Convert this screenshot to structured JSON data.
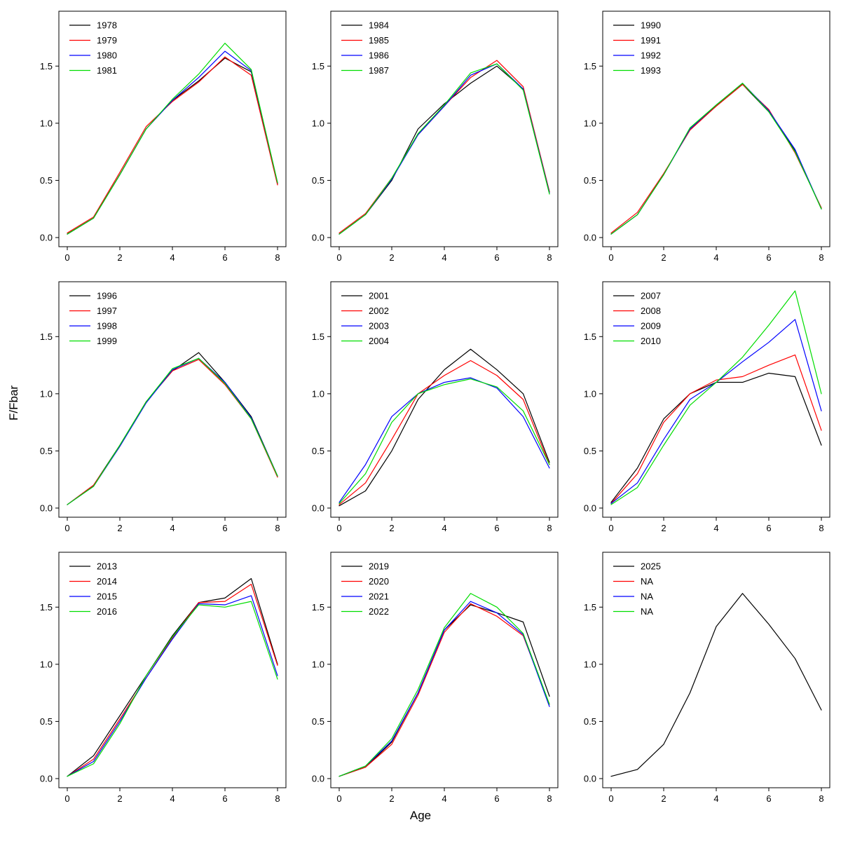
{
  "labels": {
    "xlabel": "Age",
    "ylabel": "F/Fbar"
  },
  "axes": {
    "x": [
      0,
      1,
      2,
      3,
      4,
      5,
      6,
      7,
      8
    ],
    "xticks": [
      0,
      2,
      4,
      6,
      8
    ],
    "ytick_values": [
      0,
      0.5,
      1,
      1.5
    ],
    "yticks": [
      "0.0",
      "0.5",
      "1.0",
      "1.5"
    ],
    "xlim": [
      -0.32,
      8.32
    ],
    "ylim": [
      -0.08,
      1.98
    ],
    "grid": false,
    "legend_position": "topleft"
  },
  "colors": {
    "line1": "#000000",
    "line2": "#FF0000",
    "line3": "#0000FF",
    "line4": "#00DD00"
  },
  "chart_data": [
    {
      "id": "1978-1981",
      "type": "line",
      "series": [
        {
          "name": "1978",
          "color": "#000000",
          "values": [
            0.03,
            0.17,
            0.55,
            0.95,
            1.2,
            1.37,
            1.57,
            1.45,
            0.47
          ]
        },
        {
          "name": "1979",
          "color": "#FF0000",
          "values": [
            0.04,
            0.18,
            0.57,
            0.97,
            1.19,
            1.36,
            1.58,
            1.42,
            0.46
          ]
        },
        {
          "name": "1980",
          "color": "#0000FF",
          "values": [
            0.03,
            0.17,
            0.55,
            0.95,
            1.2,
            1.4,
            1.63,
            1.46,
            0.48
          ]
        },
        {
          "name": "1981",
          "color": "#00DD00",
          "values": [
            0.03,
            0.17,
            0.55,
            0.95,
            1.21,
            1.43,
            1.7,
            1.47,
            0.48
          ]
        }
      ]
    },
    {
      "id": "1984-1987",
      "type": "line",
      "series": [
        {
          "name": "1984",
          "color": "#000000",
          "values": [
            0.03,
            0.2,
            0.5,
            0.95,
            1.17,
            1.35,
            1.5,
            1.3,
            0.4
          ]
        },
        {
          "name": "1985",
          "color": "#FF0000",
          "values": [
            0.04,
            0.21,
            0.52,
            0.9,
            1.15,
            1.4,
            1.55,
            1.32,
            0.4
          ]
        },
        {
          "name": "1986",
          "color": "#0000FF",
          "values": [
            0.03,
            0.2,
            0.51,
            0.9,
            1.15,
            1.42,
            1.52,
            1.3,
            0.39
          ]
        },
        {
          "name": "1987",
          "color": "#00DD00",
          "values": [
            0.03,
            0.2,
            0.52,
            0.91,
            1.16,
            1.44,
            1.52,
            1.29,
            0.38
          ]
        }
      ]
    },
    {
      "id": "1990-1993",
      "type": "line",
      "series": [
        {
          "name": "1990",
          "color": "#000000",
          "values": [
            0.03,
            0.2,
            0.55,
            0.95,
            1.15,
            1.34,
            1.1,
            0.76,
            0.25
          ]
        },
        {
          "name": "1991",
          "color": "#FF0000",
          "values": [
            0.04,
            0.22,
            0.56,
            0.94,
            1.15,
            1.34,
            1.12,
            0.74,
            0.26
          ]
        },
        {
          "name": "1992",
          "color": "#0000FF",
          "values": [
            0.03,
            0.2,
            0.55,
            0.95,
            1.16,
            1.35,
            1.11,
            0.77,
            0.25
          ]
        },
        {
          "name": "1993",
          "color": "#00DD00",
          "values": [
            0.03,
            0.2,
            0.55,
            0.96,
            1.16,
            1.35,
            1.1,
            0.75,
            0.25
          ]
        }
      ]
    },
    {
      "id": "1996-1999",
      "type": "line",
      "series": [
        {
          "name": "1996",
          "color": "#000000",
          "values": [
            0.03,
            0.2,
            0.55,
            0.93,
            1.2,
            1.36,
            1.1,
            0.8,
            0.28
          ]
        },
        {
          "name": "1997",
          "color": "#FF0000",
          "values": [
            0.03,
            0.2,
            0.54,
            0.93,
            1.2,
            1.3,
            1.08,
            0.78,
            0.27
          ]
        },
        {
          "name": "1998",
          "color": "#0000FF",
          "values": [
            0.03,
            0.19,
            0.54,
            0.92,
            1.21,
            1.31,
            1.1,
            0.79,
            0.28
          ]
        },
        {
          "name": "1999",
          "color": "#00DD00",
          "values": [
            0.03,
            0.19,
            0.55,
            0.93,
            1.22,
            1.31,
            1.09,
            0.78,
            0.28
          ]
        }
      ]
    },
    {
      "id": "2001-2004",
      "type": "line",
      "series": [
        {
          "name": "2001",
          "color": "#000000",
          "values": [
            0.02,
            0.15,
            0.5,
            0.95,
            1.21,
            1.39,
            1.21,
            1.0,
            0.4
          ]
        },
        {
          "name": "2002",
          "color": "#FF0000",
          "values": [
            0.03,
            0.22,
            0.6,
            1.0,
            1.16,
            1.29,
            1.16,
            0.95,
            0.38
          ]
        },
        {
          "name": "2003",
          "color": "#0000FF",
          "values": [
            0.05,
            0.38,
            0.8,
            1.0,
            1.1,
            1.14,
            1.05,
            0.8,
            0.35
          ]
        },
        {
          "name": "2004",
          "color": "#00DD00",
          "values": [
            0.04,
            0.3,
            0.75,
            1.0,
            1.08,
            1.13,
            1.06,
            0.85,
            0.38
          ]
        }
      ]
    },
    {
      "id": "2007-2010",
      "type": "line",
      "series": [
        {
          "name": "2007",
          "color": "#000000",
          "values": [
            0.05,
            0.35,
            0.78,
            1.0,
            1.1,
            1.1,
            1.18,
            1.15,
            0.55
          ]
        },
        {
          "name": "2008",
          "color": "#FF0000",
          "values": [
            0.04,
            0.3,
            0.75,
            1.0,
            1.12,
            1.15,
            1.25,
            1.34,
            0.68
          ]
        },
        {
          "name": "2009",
          "color": "#0000FF",
          "values": [
            0.04,
            0.22,
            0.6,
            0.95,
            1.1,
            1.28,
            1.45,
            1.65,
            0.85
          ]
        },
        {
          "name": "2010",
          "color": "#00DD00",
          "values": [
            0.03,
            0.18,
            0.55,
            0.9,
            1.1,
            1.32,
            1.6,
            1.9,
            1.0
          ]
        }
      ]
    },
    {
      "id": "2013-2016",
      "type": "line",
      "series": [
        {
          "name": "2013",
          "color": "#000000",
          "values": [
            0.02,
            0.2,
            0.55,
            0.9,
            1.25,
            1.54,
            1.58,
            1.75,
            1.0
          ]
        },
        {
          "name": "2014",
          "color": "#FF0000",
          "values": [
            0.02,
            0.17,
            0.52,
            0.88,
            1.23,
            1.54,
            1.55,
            1.7,
            0.99
          ]
        },
        {
          "name": "2015",
          "color": "#0000FF",
          "values": [
            0.02,
            0.15,
            0.5,
            0.88,
            1.22,
            1.53,
            1.52,
            1.6,
            0.9
          ]
        },
        {
          "name": "2016",
          "color": "#00DD00",
          "values": [
            0.02,
            0.13,
            0.48,
            0.9,
            1.24,
            1.52,
            1.5,
            1.55,
            0.87
          ]
        }
      ]
    },
    {
      "id": "2019-2022",
      "type": "line",
      "series": [
        {
          "name": "2019",
          "color": "#000000",
          "values": [
            0.02,
            0.1,
            0.32,
            0.75,
            1.3,
            1.52,
            1.45,
            1.37,
            0.72
          ]
        },
        {
          "name": "2020",
          "color": "#FF0000",
          "values": [
            0.02,
            0.1,
            0.3,
            0.73,
            1.28,
            1.53,
            1.42,
            1.25,
            0.65
          ]
        },
        {
          "name": "2021",
          "color": "#0000FF",
          "values": [
            0.02,
            0.11,
            0.33,
            0.75,
            1.3,
            1.55,
            1.45,
            1.26,
            0.63
          ]
        },
        {
          "name": "2022",
          "color": "#00DD00",
          "values": [
            0.02,
            0.11,
            0.35,
            0.78,
            1.32,
            1.62,
            1.5,
            1.27,
            0.65
          ]
        }
      ]
    },
    {
      "id": "2025",
      "type": "line",
      "series": [
        {
          "name": "2025",
          "color": "#000000",
          "values": [
            0.02,
            0.08,
            0.3,
            0.75,
            1.33,
            1.62,
            1.35,
            1.05,
            0.6
          ]
        },
        {
          "name": "NA",
          "color": "#FF0000",
          "values": null
        },
        {
          "name": "NA",
          "color": "#0000FF",
          "values": null
        },
        {
          "name": "NA",
          "color": "#00DD00",
          "values": null
        }
      ]
    }
  ]
}
